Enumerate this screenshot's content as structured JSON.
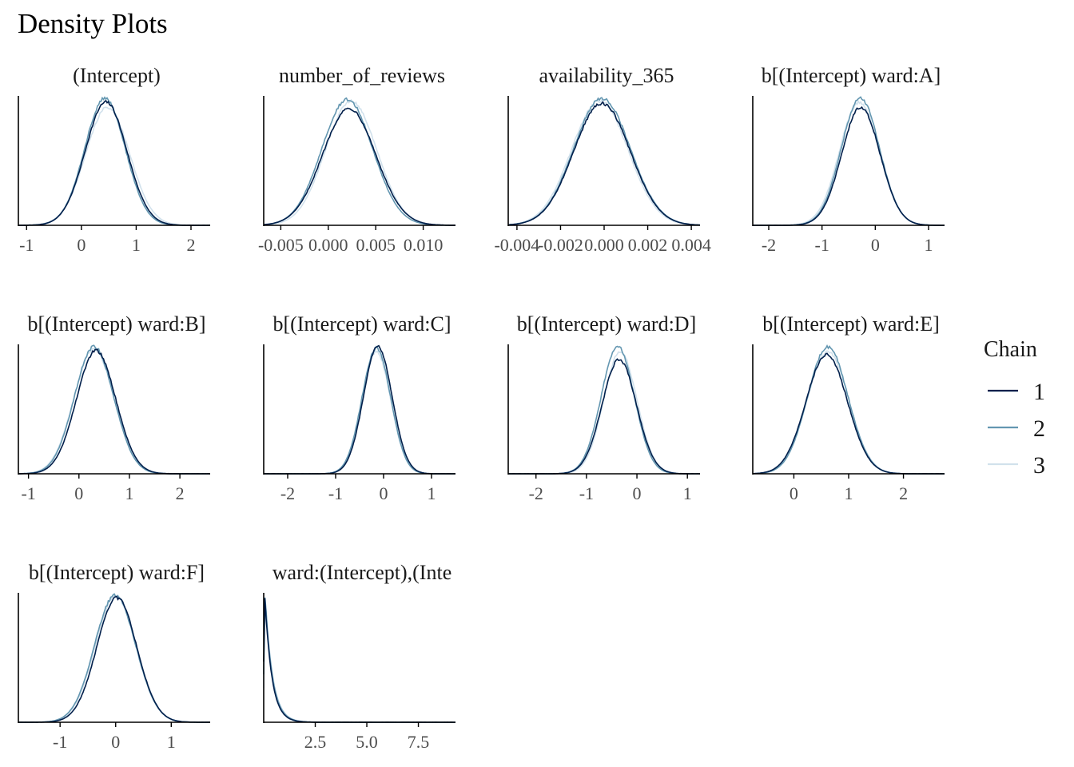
{
  "title": "Density Plots",
  "colors": {
    "chain1": "#011f4b",
    "chain2": "#6497b1",
    "chain3": "#d1e1ec",
    "axis": "#000000",
    "tick_text": "#4d4d4d"
  },
  "legend": {
    "title": "Chain",
    "entries": [
      "1",
      "2",
      "3"
    ]
  },
  "chart_data": [
    {
      "type": "line",
      "title": "(Intercept)",
      "xlim": [
        -1.15,
        2.35
      ],
      "xticks": [
        -1,
        0,
        1,
        2
      ],
      "tick_labels": [
        "-1",
        "0",
        "1",
        "2"
      ],
      "series": [
        {
          "name": "1",
          "mean": 0.45,
          "sd": 0.38,
          "peak": 0.97
        },
        {
          "name": "2",
          "mean": 0.43,
          "sd": 0.37,
          "peak": 1.0
        },
        {
          "name": "3",
          "mean": 0.48,
          "sd": 0.4,
          "peak": 0.93
        }
      ]
    },
    {
      "type": "line",
      "title": "number_of_reviews",
      "xlim": [
        -0.0068,
        0.0134
      ],
      "xticks": [
        -0.005,
        0.0,
        0.005,
        0.01
      ],
      "tick_labels": [
        "-0.005",
        "0.000",
        "0.005",
        "0.010"
      ],
      "series": [
        {
          "name": "1",
          "mean": 0.0022,
          "sd": 0.0028,
          "peak": 0.92
        },
        {
          "name": "2",
          "mean": 0.002,
          "sd": 0.0027,
          "peak": 0.99
        },
        {
          "name": "3",
          "mean": 0.0024,
          "sd": 0.0027,
          "peak": 0.98
        }
      ]
    },
    {
      "type": "line",
      "title": "availability_365",
      "xlim": [
        -0.0044,
        0.0044
      ],
      "xticks": [
        -0.004,
        -0.002,
        0.0,
        0.002,
        0.004
      ],
      "tick_labels": [
        "-0.004",
        "-0.002",
        "0.000",
        "0.002",
        "0.004"
      ],
      "series": [
        {
          "name": "1",
          "mean": -0.0001,
          "sd": 0.0013,
          "peak": 0.96
        },
        {
          "name": "2",
          "mean": -0.0001,
          "sd": 0.0013,
          "peak": 1.0
        },
        {
          "name": "3",
          "mean": -0.0002,
          "sd": 0.0013,
          "peak": 0.98
        }
      ]
    },
    {
      "type": "line",
      "title": "b[(Intercept) ward:A]",
      "xlim": [
        -2.3,
        1.3
      ],
      "xticks": [
        -2,
        -1,
        0,
        1
      ],
      "tick_labels": [
        "-2",
        "-1",
        "0",
        "1"
      ],
      "series": [
        {
          "name": "1",
          "mean": -0.27,
          "sd": 0.36,
          "peak": 0.93
        },
        {
          "name": "2",
          "mean": -0.28,
          "sd": 0.36,
          "peak": 1.0
        },
        {
          "name": "3",
          "mean": -0.3,
          "sd": 0.37,
          "peak": 0.97
        }
      ]
    },
    {
      "type": "line",
      "title": "b[(Intercept) ward:B]",
      "xlim": [
        -1.2,
        2.6
      ],
      "xticks": [
        -1,
        0,
        1,
        2
      ],
      "tick_labels": [
        "-1",
        "0",
        "1",
        "2"
      ],
      "series": [
        {
          "name": "1",
          "mean": 0.34,
          "sd": 0.39,
          "peak": 0.97
        },
        {
          "name": "2",
          "mean": 0.3,
          "sd": 0.39,
          "peak": 1.0
        },
        {
          "name": "3",
          "mean": 0.3,
          "sd": 0.4,
          "peak": 0.98
        }
      ]
    },
    {
      "type": "line",
      "title": "b[(Intercept) ward:C]",
      "xlim": [
        -2.5,
        1.5
      ],
      "xticks": [
        -2,
        -1,
        0,
        1
      ],
      "tick_labels": [
        "-2",
        "-1",
        "0",
        "1"
      ],
      "series": [
        {
          "name": "1",
          "mean": -0.12,
          "sd": 0.3,
          "peak": 1.0
        },
        {
          "name": "2",
          "mean": -0.15,
          "sd": 0.3,
          "peak": 0.99
        },
        {
          "name": "3",
          "mean": -0.15,
          "sd": 0.3,
          "peak": 0.96
        }
      ]
    },
    {
      "type": "line",
      "title": "b[(Intercept) ward:D]",
      "xlim": [
        -2.55,
        1.25
      ],
      "xticks": [
        -2,
        -1,
        0,
        1
      ],
      "tick_labels": [
        "-2",
        "-1",
        "0",
        "1"
      ],
      "series": [
        {
          "name": "1",
          "mean": -0.35,
          "sd": 0.34,
          "peak": 0.9
        },
        {
          "name": "2",
          "mean": -0.38,
          "sd": 0.33,
          "peak": 1.0
        },
        {
          "name": "3",
          "mean": -0.33,
          "sd": 0.33,
          "peak": 0.96
        }
      ]
    },
    {
      "type": "line",
      "title": "b[(Intercept) ward:E]",
      "xlim": [
        -0.75,
        2.75
      ],
      "xticks": [
        0,
        1,
        2
      ],
      "tick_labels": [
        "0",
        "1",
        "2"
      ],
      "series": [
        {
          "name": "1",
          "mean": 0.6,
          "sd": 0.38,
          "peak": 0.94
        },
        {
          "name": "2",
          "mean": 0.62,
          "sd": 0.37,
          "peak": 1.0
        },
        {
          "name": "3",
          "mean": 0.62,
          "sd": 0.38,
          "peak": 0.96
        }
      ]
    },
    {
      "type": "line",
      "title": "b[(Intercept) ward:F]",
      "xlim": [
        -1.75,
        1.7
      ],
      "xticks": [
        -1,
        0,
        1
      ],
      "tick_labels": [
        "-1",
        "0",
        "1"
      ],
      "series": [
        {
          "name": "1",
          "mean": 0.02,
          "sd": 0.36,
          "peak": 0.98
        },
        {
          "name": "2",
          "mean": -0.01,
          "sd": 0.37,
          "peak": 1.0
        },
        {
          "name": "3",
          "mean": 0.0,
          "sd": 0.37,
          "peak": 0.99
        }
      ]
    },
    {
      "type": "line",
      "title": "ward:(Intercept),(Inte",
      "xlim": [
        0.0,
        9.3
      ],
      "xticks": [
        2.5,
        5.0,
        7.5
      ],
      "tick_labels": [
        "2.5",
        "5.0",
        "7.5"
      ],
      "skewed": true,
      "series": [
        {
          "name": "1",
          "mode": 0.06,
          "rate": 1.35,
          "peak": 0.98
        },
        {
          "name": "2",
          "mode": 0.07,
          "rate": 1.3,
          "peak": 1.0
        },
        {
          "name": "3",
          "mode": 0.08,
          "rate": 1.25,
          "peak": 0.97
        }
      ]
    }
  ]
}
